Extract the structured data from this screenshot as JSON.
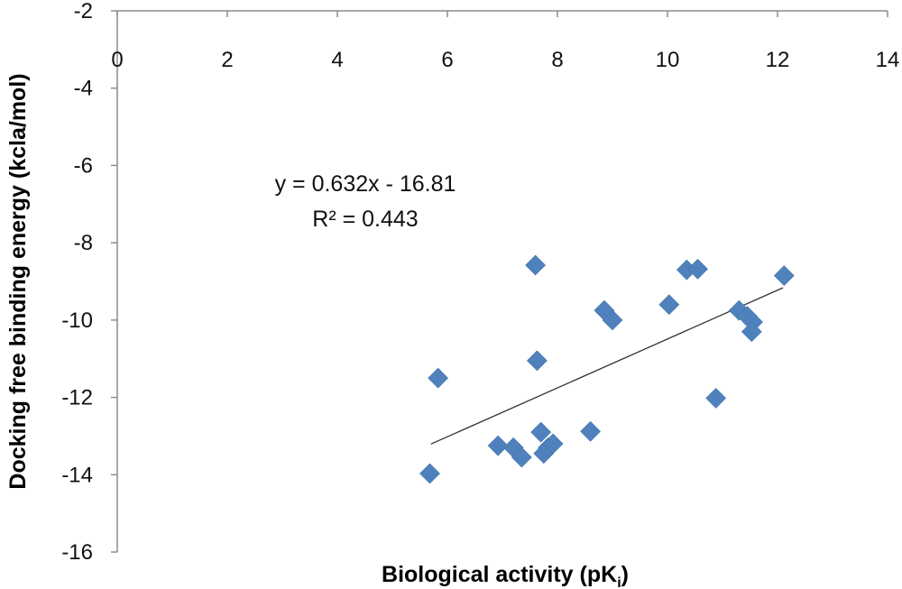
{
  "chart_data": {
    "type": "scatter",
    "xlabel": "Biological activity (pK",
    "xlabel_sub": "i",
    "xlabel_end": ")",
    "ylabel": "Docking free binding energy (kcla/mol)",
    "xlim": [
      0,
      14
    ],
    "ylim": [
      -16,
      -2
    ],
    "x_ticks": [
      0,
      2,
      4,
      6,
      8,
      10,
      12,
      14
    ],
    "y_ticks": [
      -2,
      -4,
      -6,
      -8,
      -10,
      -12,
      -14,
      -16
    ],
    "grid": false,
    "marker": "diamond",
    "marker_color": "#4f81bd",
    "trendline_color": "#333333",
    "trendline": {
      "slope": 0.632,
      "intercept": -16.81,
      "x_range": [
        5.7,
        12.1
      ]
    },
    "equation_text": "y = 0.632x - 16.81",
    "r2_text": "R² = 0.443",
    "series": [
      {
        "points": [
          [
            5.68,
            -13.97
          ],
          [
            5.83,
            -11.5
          ],
          [
            6.92,
            -13.25
          ],
          [
            7.2,
            -13.3
          ],
          [
            7.35,
            -13.55
          ],
          [
            7.6,
            -8.58
          ],
          [
            7.63,
            -11.05
          ],
          [
            7.7,
            -12.9
          ],
          [
            7.75,
            -13.45
          ],
          [
            7.83,
            -13.3
          ],
          [
            7.92,
            -13.2
          ],
          [
            8.6,
            -12.88
          ],
          [
            8.85,
            -9.75
          ],
          [
            9.0,
            -10.0
          ],
          [
            10.03,
            -9.6
          ],
          [
            10.35,
            -8.7
          ],
          [
            10.55,
            -8.68
          ],
          [
            10.88,
            -12.02
          ],
          [
            11.3,
            -9.75
          ],
          [
            11.45,
            -9.9
          ],
          [
            11.55,
            -10.05
          ],
          [
            11.53,
            -10.3
          ],
          [
            12.12,
            -8.85
          ]
        ]
      }
    ]
  }
}
